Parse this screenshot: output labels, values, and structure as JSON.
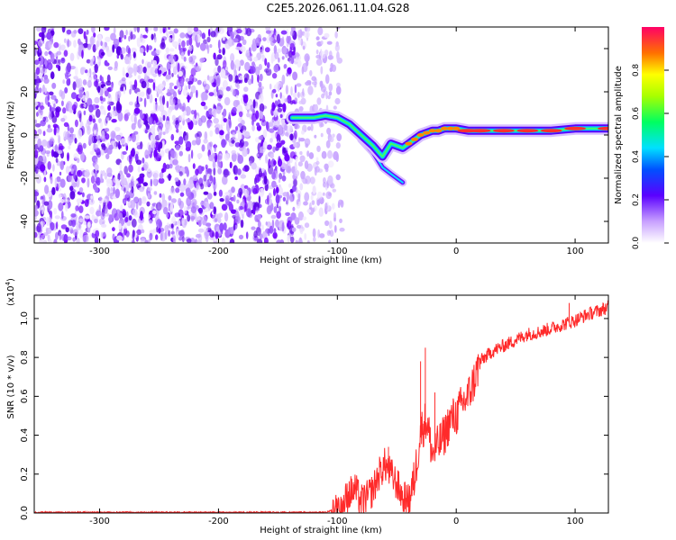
{
  "title": "C2E5.2026.061.11.04.G28",
  "chart_data": [
    {
      "type": "heatmap",
      "name": "spectrogram",
      "xlabel": "Height of straight line (km)",
      "ylabel": "Frequency (Hz)",
      "xlim": [
        -355,
        128
      ],
      "ylim": [
        -50,
        50
      ],
      "xticks": [
        -300,
        -200,
        -100,
        0,
        100
      ],
      "yticks": [
        -40,
        -20,
        0,
        20,
        40
      ],
      "noise_region_x": [
        -355,
        -105
      ],
      "signal_track": {
        "x": [
          -138,
          -120,
          -110,
          -100,
          -90,
          -80,
          -70,
          -62,
          -55,
          -50,
          -45,
          -40,
          -35,
          -30,
          -25,
          -20,
          -15,
          -10,
          -5,
          0,
          10,
          20,
          40,
          60,
          80,
          100,
          128
        ],
        "freq": [
          8,
          8,
          9,
          8,
          5,
          0,
          -5,
          -10,
          -4,
          -5,
          -6,
          -4,
          -2,
          0,
          1,
          2,
          2,
          3,
          3,
          3,
          2,
          2,
          2,
          2,
          2,
          3,
          3
        ]
      },
      "secondary_track": {
        "x": [
          -80,
          -70,
          -62,
          -55,
          -50,
          -45
        ],
        "freq": [
          -2,
          -8,
          -15,
          -18,
          -20,
          -22
        ]
      },
      "colorbar": {
        "label": "Normalized spectral amplitude",
        "range": [
          0,
          1
        ],
        "ticks": [
          0.0,
          0.2,
          0.4,
          0.6,
          0.8
        ]
      }
    },
    {
      "type": "line",
      "name": "snr",
      "xlabel": "Height of straight line (km)",
      "ylabel": "SNR (10 * v/v)",
      "scale_label": "(x10",
      "scale_exp": "4",
      "scale_close": ")",
      "xlim": [
        -355,
        128
      ],
      "ylim": [
        0,
        1.12
      ],
      "xticks": [
        -300,
        -200,
        -100,
        0,
        100
      ],
      "yticks": [
        0.0,
        0.2,
        0.4,
        0.6,
        0.8,
        1.0
      ],
      "series": [
        {
          "name": "SNR",
          "color": "#ff2a2a",
          "x": [
            -355,
            -300,
            -200,
            -110,
            -100,
            -95,
            -90,
            -85,
            -80,
            -75,
            -70,
            -65,
            -60,
            -55,
            -50,
            -45,
            -40,
            -35,
            -30,
            -25,
            -20,
            -15,
            -10,
            -5,
            0,
            5,
            10,
            15,
            20,
            30,
            40,
            50,
            60,
            70,
            80,
            90,
            100,
            110,
            120,
            128
          ],
          "values": [
            0.0,
            0.0,
            0.0,
            0.0,
            0.03,
            0.05,
            0.1,
            0.12,
            0.06,
            0.08,
            0.12,
            0.2,
            0.25,
            0.2,
            0.15,
            0.08,
            0.06,
            0.18,
            0.42,
            0.48,
            0.3,
            0.35,
            0.4,
            0.48,
            0.5,
            0.56,
            0.6,
            0.68,
            0.78,
            0.83,
            0.86,
            0.89,
            0.92,
            0.93,
            0.95,
            0.97,
            0.99,
            1.02,
            1.04,
            1.06
          ]
        }
      ],
      "spikes": [
        {
          "x": -85,
          "value": 0.18
        },
        {
          "x": -57,
          "value": 0.34
        },
        {
          "x": -30,
          "value": 0.78
        },
        {
          "x": -26,
          "value": 0.85
        },
        {
          "x": -18,
          "value": 0.62
        },
        {
          "x": 95,
          "value": 1.08
        }
      ]
    }
  ]
}
